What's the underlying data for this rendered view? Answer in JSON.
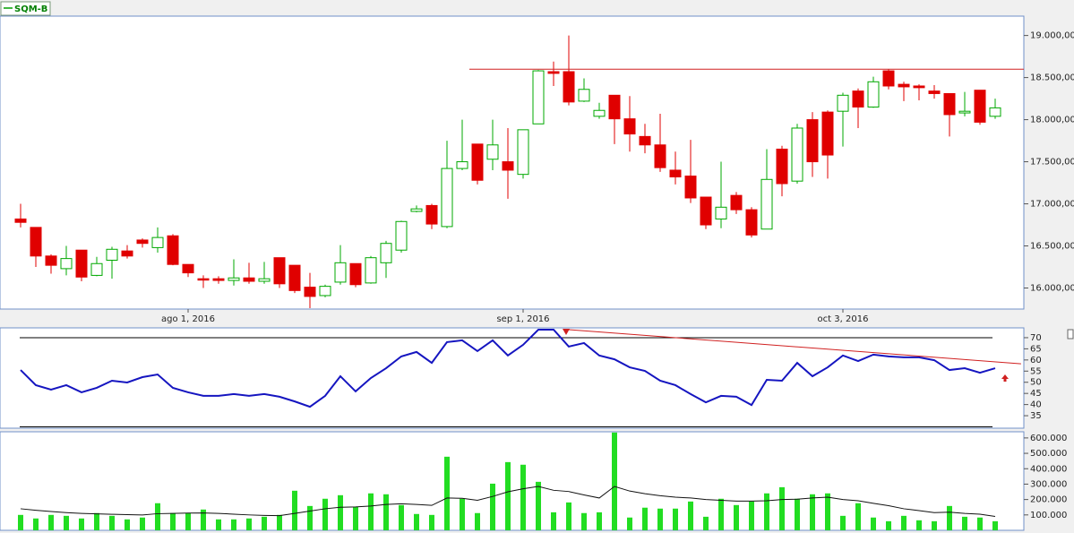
{
  "chart_data": [
    {
      "type": "candlestick",
      "title": "SQM-B",
      "categories": [
        null,
        null,
        null,
        null,
        null,
        null,
        null,
        null,
        null,
        null,
        null,
        "ago 1, 2016",
        null,
        null,
        null,
        null,
        null,
        null,
        null,
        null,
        null,
        null,
        null,
        null,
        null,
        null,
        null,
        null,
        null,
        null,
        null,
        null,
        null,
        "sep 1, 2016",
        null,
        null,
        null,
        null,
        null,
        null,
        null,
        null,
        null,
        null,
        null,
        null,
        null,
        null,
        null,
        null,
        null,
        null,
        null,
        null,
        "oct 3, 2016",
        null,
        null,
        null,
        null,
        null,
        null,
        null,
        null,
        null,
        null
      ],
      "open": [
        16820,
        16720,
        16380,
        16230,
        16450,
        16150,
        16330,
        16440,
        16570,
        16480,
        16620,
        16280,
        16110,
        16110,
        16090,
        16120,
        16080,
        16360,
        16270,
        16010,
        15910,
        16070,
        16290,
        16060,
        16300,
        16450,
        16910,
        16980,
        16730,
        17420,
        17710,
        17530,
        17500,
        17350,
        17950,
        18570,
        18570,
        18220,
        18040,
        18290,
        18010,
        17800,
        17700,
        17400,
        17330,
        17080,
        16820,
        17100,
        16930,
        16700,
        17650,
        17270,
        18000,
        18090,
        18100,
        18340,
        18150,
        18580,
        18420,
        18400,
        18340,
        18310,
        18080,
        18350,
        18040
      ],
      "high": [
        17000,
        16720,
        16400,
        16500,
        16450,
        16370,
        16490,
        16510,
        16590,
        16720,
        16640,
        16280,
        16150,
        16140,
        16340,
        16300,
        16310,
        16360,
        16270,
        16180,
        16040,
        16510,
        16290,
        16380,
        16560,
        16800,
        16980,
        17000,
        17750,
        18000,
        17710,
        18000,
        17900,
        17880,
        18590,
        18690,
        19000,
        18490,
        18200,
        18290,
        18280,
        17950,
        18070,
        17620,
        17760,
        17080,
        17500,
        17140,
        16960,
        17650,
        17690,
        17950,
        18090,
        18110,
        18320,
        18370,
        18510,
        18600,
        18450,
        18420,
        18410,
        18310,
        18330,
        18350,
        18250
      ],
      "low": [
        16720,
        16250,
        16170,
        16150,
        16080,
        16140,
        16110,
        16350,
        16480,
        16420,
        16270,
        16130,
        16000,
        16050,
        16030,
        16050,
        16050,
        16000,
        15940,
        15760,
        15890,
        16040,
        16010,
        16050,
        16120,
        16420,
        16900,
        16700,
        16710,
        17400,
        17230,
        17400,
        17060,
        17300,
        17950,
        18400,
        18170,
        18210,
        18010,
        17710,
        17620,
        17600,
        17380,
        17230,
        17010,
        16700,
        16710,
        16880,
        16600,
        16700,
        17090,
        17240,
        17320,
        17300,
        17680,
        17900,
        18140,
        18360,
        18220,
        18230,
        18250,
        17800,
        18040,
        17940,
        18010
      ],
      "close": [
        16780,
        16380,
        16270,
        16350,
        16130,
        16290,
        16460,
        16380,
        16530,
        16600,
        16280,
        16180,
        16100,
        16090,
        16120,
        16080,
        16110,
        16050,
        15970,
        15900,
        16020,
        16300,
        16040,
        16360,
        16530,
        16790,
        16940,
        16760,
        17420,
        17500,
        17280,
        17700,
        17400,
        17880,
        18580,
        18550,
        18210,
        18360,
        18110,
        18010,
        17830,
        17700,
        17430,
        17320,
        17070,
        16750,
        16960,
        16930,
        16630,
        17290,
        17240,
        17900,
        17500,
        17580,
        18290,
        18150,
        18450,
        18400,
        18390,
        18380,
        18310,
        18060,
        18100,
        17970,
        18140
      ],
      "up_color": "#00a800",
      "down_color": "#e00000",
      "resistance": 18600,
      "resistance_color": "#d02020",
      "ylim": [
        15750,
        19230
      ],
      "yticks": [
        {
          "value": 16000,
          "label": "16.000,00"
        },
        {
          "value": 16500,
          "label": "16.500,00"
        },
        {
          "value": 17000,
          "label": "17.000,00"
        },
        {
          "value": 17500,
          "label": "17.500,00"
        },
        {
          "value": 18000,
          "label": "18.000,00"
        },
        {
          "value": 18500,
          "label": "18.500,00"
        },
        {
          "value": 19000,
          "label": "19.000,00"
        }
      ]
    },
    {
      "type": "line",
      "color": "#1515c0",
      "values": [
        55.5,
        48.7,
        46.7,
        48.7,
        45.5,
        47.5,
        50.7,
        49.9,
        52.3,
        53.5,
        47.5,
        45.5,
        43.9,
        43.9,
        44.7,
        43.9,
        44.7,
        43.5,
        41.4,
        39,
        43.9,
        52.7,
        45.9,
        51.9,
        56.3,
        61.6,
        63.6,
        58.7,
        68,
        68.8,
        64,
        68.8,
        62,
        66.8,
        73.6,
        73.6,
        66,
        67.6,
        62,
        60.3,
        56.7,
        55.1,
        50.7,
        48.7,
        44.7,
        41,
        43.9,
        43.5,
        39.8,
        51.1,
        50.7,
        58.7,
        52.7,
        56.7,
        62,
        59.5,
        62.4,
        61.6,
        61.2,
        61.2,
        59.9,
        55.5,
        56.3,
        54.3,
        56.3
      ],
      "bands": [
        70,
        30
      ],
      "trendline": {
        "x": [
          36,
          65.7
        ],
        "values": [
          73.6,
          58.3
        ],
        "color": "#d02020"
      },
      "ylim": [
        29.4,
        74.4
      ],
      "yticks": [
        35,
        40,
        45,
        50,
        55,
        60,
        65,
        70
      ]
    },
    {
      "type": "bar",
      "color": "#22dd22",
      "ma_color": "#111111",
      "values": [
        100000,
        77000,
        100000,
        94000,
        77000,
        112000,
        94000,
        71000,
        83000,
        176000,
        112000,
        112000,
        135000,
        71000,
        71000,
        77000,
        88000,
        100000,
        257000,
        158000,
        205000,
        228000,
        152000,
        240000,
        234000,
        164000,
        106000,
        100000,
        478000,
        205000,
        112000,
        303000,
        443000,
        426000,
        315000,
        117000,
        181000,
        112000,
        117000,
        635000,
        83000,
        147000,
        141000,
        141000,
        187000,
        88000,
        205000,
        164000,
        187000,
        240000,
        280000,
        205000,
        234000,
        240000,
        94000,
        176000,
        83000,
        59000,
        94000,
        65000,
        59000,
        158000,
        88000,
        83000,
        59000
      ],
      "ma": [
        140000,
        130000,
        122000,
        115000,
        110000,
        107000,
        104000,
        102000,
        100000,
        108000,
        110000,
        112000,
        113000,
        110000,
        105000,
        100000,
        97000,
        95000,
        110000,
        125000,
        140000,
        150000,
        152000,
        158000,
        168000,
        172000,
        168000,
        162000,
        210000,
        208000,
        195000,
        220000,
        250000,
        270000,
        285000,
        260000,
        252000,
        230000,
        210000,
        285000,
        255000,
        238000,
        225000,
        215000,
        210000,
        200000,
        195000,
        190000,
        190000,
        192000,
        200000,
        202000,
        210000,
        215000,
        200000,
        192000,
        175000,
        160000,
        140000,
        128000,
        115000,
        118000,
        110000,
        105000,
        90000
      ],
      "ylim": [
        0,
        640000
      ],
      "yticks": [
        {
          "value": 100000,
          "label": "100.000"
        },
        {
          "value": 200000,
          "label": "200.000"
        },
        {
          "value": 300000,
          "label": "300.000"
        },
        {
          "value": 400000,
          "label": "400.000"
        },
        {
          "value": 500000,
          "label": "500.000"
        },
        {
          "value": 600000,
          "label": "600.000"
        }
      ]
    }
  ]
}
